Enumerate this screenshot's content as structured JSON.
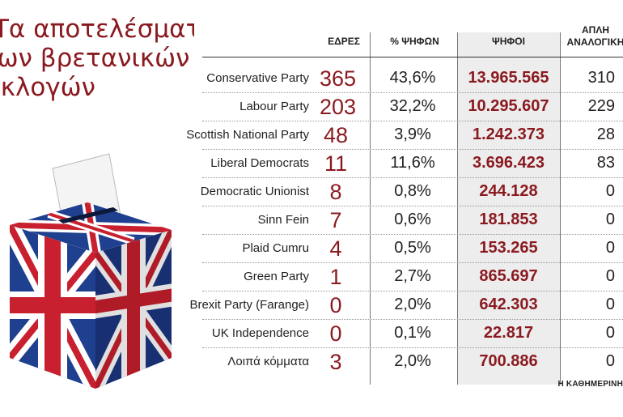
{
  "title": {
    "line1": "Τα αποτελέσματα",
    "line2": "των βρετανικών",
    "line3": "εκλογών"
  },
  "table": {
    "headers": {
      "seats": "ΕΔΡΕΣ",
      "pct": "% ΨΗΦΩΝ",
      "votes": "ΨΗΦΟΙ",
      "pr_line1": "ΑΠΛΗ",
      "pr_line2": "ΑΝΑΛΟΓΙΚΗ"
    },
    "rows": [
      {
        "party": "Conservative Party",
        "seats": "365",
        "pct": "43,6%",
        "votes": "13.965.565",
        "pr": "310"
      },
      {
        "party": "Labour Party",
        "seats": "203",
        "pct": "32,2%",
        "votes": "10.295.607",
        "pr": "229"
      },
      {
        "party": "Scottish National Party",
        "seats": "48",
        "pct": "3,9%",
        "votes": "1.242.373",
        "pr": "28"
      },
      {
        "party": "Liberal Democrats",
        "seats": "11",
        "pct": "11,6%",
        "votes": "3.696.423",
        "pr": "83"
      },
      {
        "party": "Democratic Unionist",
        "seats": "8",
        "pct": "0,8%",
        "votes": "244.128",
        "pr": "0"
      },
      {
        "party": "Sinn Fein",
        "seats": "7",
        "pct": "0,6%",
        "votes": "181.853",
        "pr": "0"
      },
      {
        "party": "Plaid Cumru",
        "seats": "4",
        "pct": "0,5%",
        "votes": "153.265",
        "pr": "0"
      },
      {
        "party": "Green Party",
        "seats": "1",
        "pct": "2,7%",
        "votes": "865.697",
        "pr": "0"
      },
      {
        "party": "Brexit Party (Farange)",
        "seats": "0",
        "pct": "2,0%",
        "votes": "642.303",
        "pr": "0"
      },
      {
        "party": "UK Independence",
        "seats": "0",
        "pct": "0,1%",
        "votes": "22.817",
        "pr": "0"
      },
      {
        "party": "Λοιπά κόμματα",
        "seats": "3",
        "pct": "2,0%",
        "votes": "700.886",
        "pr": "0"
      }
    ]
  },
  "source": "Η ΚΑΘΗΜΕΡΙΝΗ",
  "colors": {
    "accent": "#8a1a1f",
    "flag_blue": "#1f3f8f",
    "flag_red": "#c8202e",
    "votes_column_bg": "#ededed"
  },
  "illustration": "ballot-box-union-jack"
}
